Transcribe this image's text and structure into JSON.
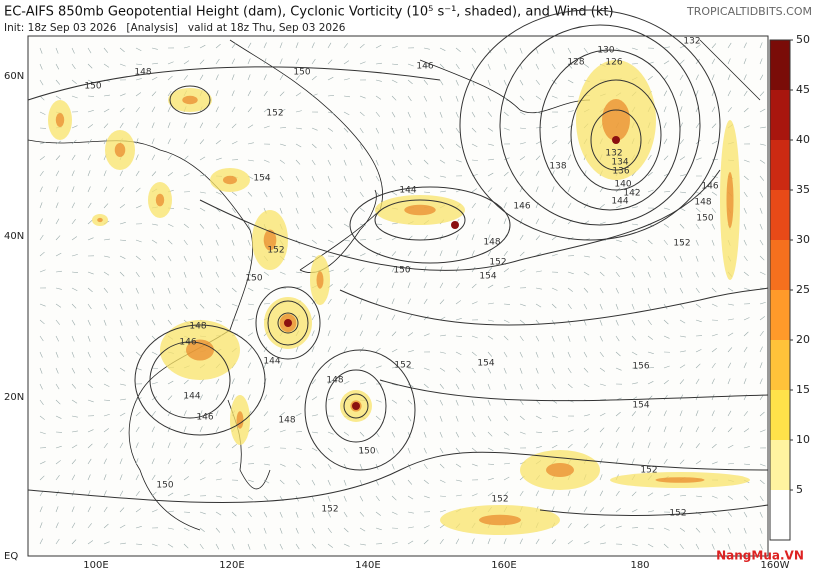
{
  "header": {
    "title": "EC-AIFS 850mb Geopotential Height (dam), Cyclonic Vorticity (10⁵ s⁻¹, shaded), and Wind (kt)",
    "subtitle": "Init: 18z Sep 03 2026   [Analysis]   valid at 18z Thu, Sep 03 2026",
    "site": "TROPICALTIDBITS.COM"
  },
  "map": {
    "lat_labels": [
      "60N",
      "40N",
      "20N",
      "EQ"
    ],
    "lon_labels": [
      "100E",
      "120E",
      "140E",
      "160E",
      "180",
      "160W"
    ],
    "contour_labels": [
      "150",
      "148",
      "150",
      "146",
      "152",
      "154",
      "144",
      "146",
      "148",
      "150",
      "152",
      "154",
      "152",
      "150",
      "148",
      "146",
      "144",
      "144",
      "146",
      "148",
      "148",
      "152",
      "150",
      "154",
      "156",
      "154",
      "150",
      "152",
      "152",
      "152",
      "152",
      "128",
      "130",
      "126",
      "132",
      "132",
      "134",
      "136",
      "140",
      "142",
      "144",
      "146",
      "148",
      "150",
      "152",
      "138"
    ]
  },
  "colorbar": {
    "ticks": [
      5,
      10,
      15,
      20,
      25,
      30,
      35,
      40,
      45,
      50
    ]
  },
  "watermark": "NangMua.VN"
}
